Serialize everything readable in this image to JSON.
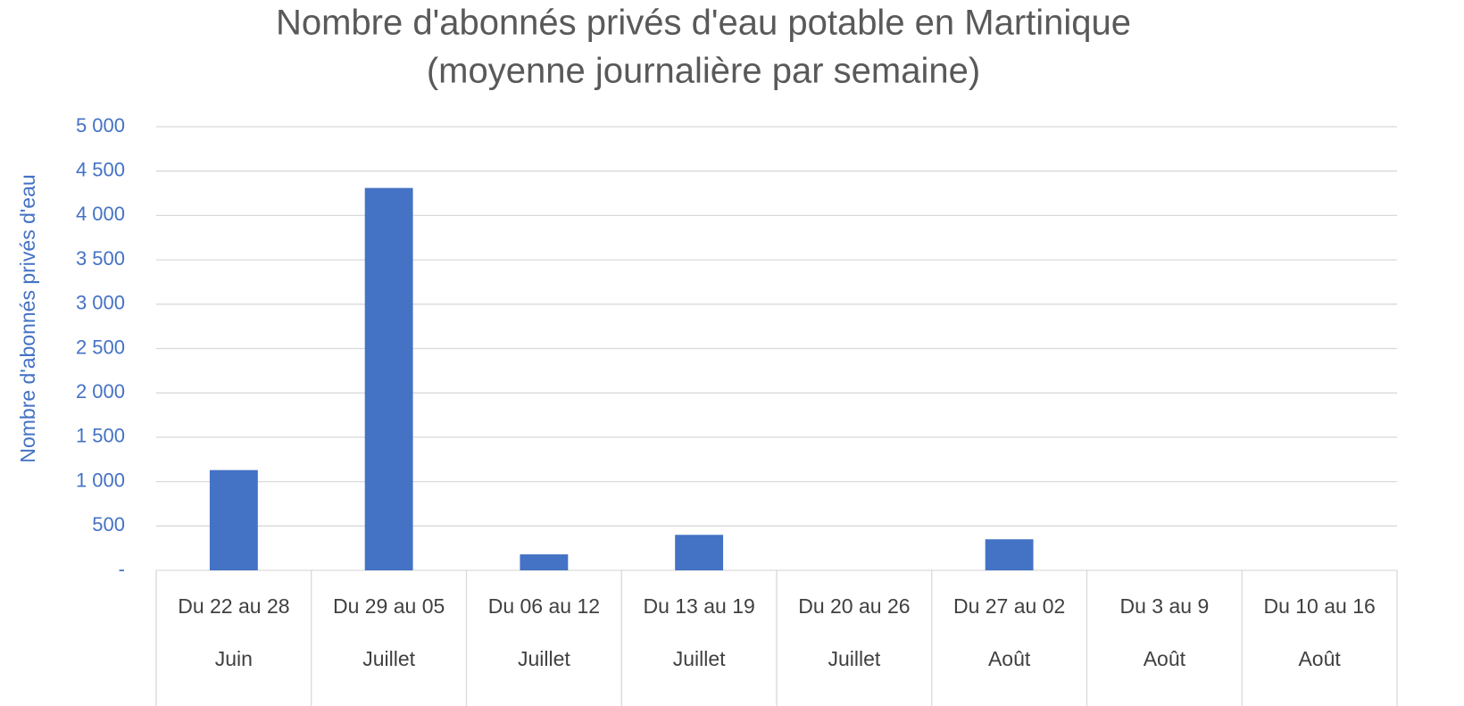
{
  "chart_data": {
    "type": "bar",
    "title": "Nombre d'abonnés privés d'eau potable en Martinique",
    "subtitle": "(moyenne journalière par semaine)",
    "y_label": "Nombre d'abonnés privés d'eau",
    "categories": [
      "Du 22 au 28",
      "Du 29 au 05",
      "Du 06 au 12",
      "Du 13 au 19",
      "Du 20 au 26",
      "Du 27 au 02",
      "Du 3 au 9",
      "Du 10 au 16"
    ],
    "category_groups": [
      "Juin",
      "Juillet",
      "Juillet",
      "Juillet",
      "Juillet",
      "Août",
      "Août",
      "Août"
    ],
    "values": [
      1130,
      4310,
      180,
      400,
      0,
      350,
      0,
      0
    ],
    "color": "#4472c4",
    "ylim": [
      0,
      5000
    ],
    "yticks": [
      {
        "value": 0,
        "label": "-"
      },
      500,
      {
        "value": 1000,
        "label": "1 000"
      },
      {
        "value": 1500,
        "label": "1 500"
      },
      {
        "value": 2000,
        "label": "2 000"
      },
      {
        "value": 2500,
        "label": "2 500"
      },
      {
        "value": 3000,
        "label": "3 000"
      },
      {
        "value": 3500,
        "label": "3 500"
      },
      {
        "value": 4000,
        "label": "4 000"
      },
      {
        "value": 4500,
        "label": "4 500"
      },
      {
        "value": 5000,
        "label": "5 000"
      }
    ],
    "grid": true
  }
}
